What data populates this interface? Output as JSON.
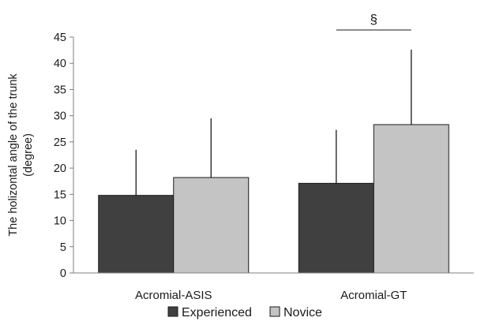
{
  "chart_data": {
    "type": "bar",
    "categories": [
      "Acromial-ASIS",
      "Acromial-GT"
    ],
    "series": [
      {
        "name": "Experienced",
        "values": [
          14.8,
          17.1
        ],
        "error": [
          8.7,
          10.2
        ],
        "color": "#404040"
      },
      {
        "name": "Novice",
        "values": [
          18.2,
          28.3
        ],
        "error": [
          11.3,
          14.3
        ],
        "color": "#c4c4c4"
      }
    ],
    "ylabel_lines": [
      "The holizontal angle of the trunk",
      "(degree)"
    ],
    "ylim": [
      0,
      45
    ],
    "yticks": [
      0,
      5,
      10,
      15,
      20,
      25,
      30,
      35,
      40,
      45
    ],
    "grid": false,
    "legend_position": "bottom",
    "annotations": [
      {
        "text": "§",
        "category": "Acromial-GT",
        "type": "significance-bracket"
      }
    ]
  }
}
